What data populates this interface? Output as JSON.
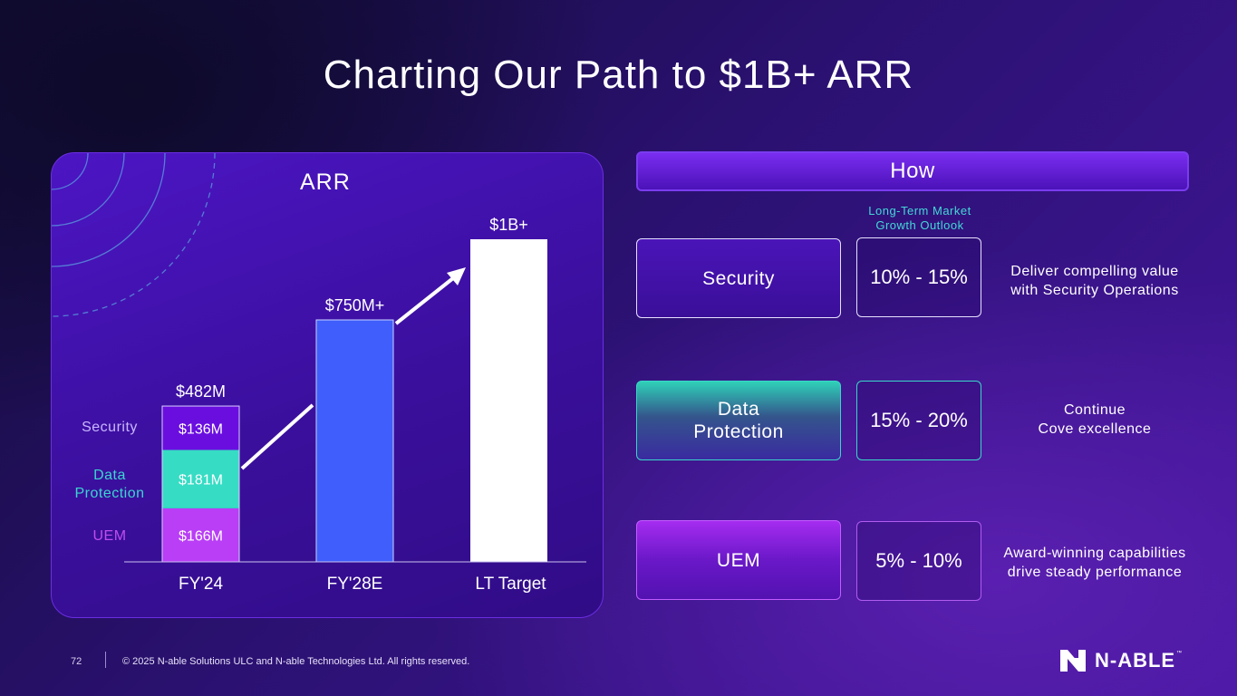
{
  "title": "Charting Our Path to $1B+ ARR",
  "chart_data": {
    "type": "bar",
    "title": "ARR",
    "categories": [
      "FY'24",
      "FY'28E",
      "LT Target"
    ],
    "totals": [
      482,
      750,
      1000
    ],
    "total_labels": [
      "$482M",
      "$750M+",
      "$1B+"
    ],
    "units": "$M",
    "stacked_fy24": [
      {
        "name": "UEM",
        "value": 166,
        "label": "$166M",
        "color": "#b93ef5"
      },
      {
        "name": "Data Protection",
        "value": 181,
        "label": "$181M",
        "color": "#36dcc4"
      },
      {
        "name": "Security",
        "value": 136,
        "label": "$136M",
        "color": "#6a0ee0"
      }
    ],
    "bar_colors": {
      "fy28": "#3f5efb",
      "lt": "#ffffff"
    },
    "side_labels": [
      {
        "text": "Security",
        "color": "#c9b6ff"
      },
      {
        "text": "Data\nProtection",
        "color": "#3ad6d0"
      },
      {
        "text": "UEM",
        "color": "#c04cf0"
      }
    ],
    "ylim": [
      0,
      1000
    ]
  },
  "how": {
    "header": "How",
    "ltm_label": "Long-Term Market\nGrowth Outlook",
    "rows": [
      {
        "category": "Security",
        "rate": "10% - 15%",
        "desc": "Deliver compelling value\nwith Security Operations"
      },
      {
        "category": "Data\nProtection",
        "rate": "15% - 20%",
        "desc": "Continue\nCove excellence"
      },
      {
        "category": "UEM",
        "rate": "5% - 10%",
        "desc": "Award-winning capabilities\ndrive steady performance"
      }
    ]
  },
  "footer": {
    "page": "72",
    "copyright": "© 2025 N-able Solutions ULC and N-able Technologies Ltd. All rights reserved.",
    "logo": "N-ABLE",
    "logo_tm": "™"
  }
}
